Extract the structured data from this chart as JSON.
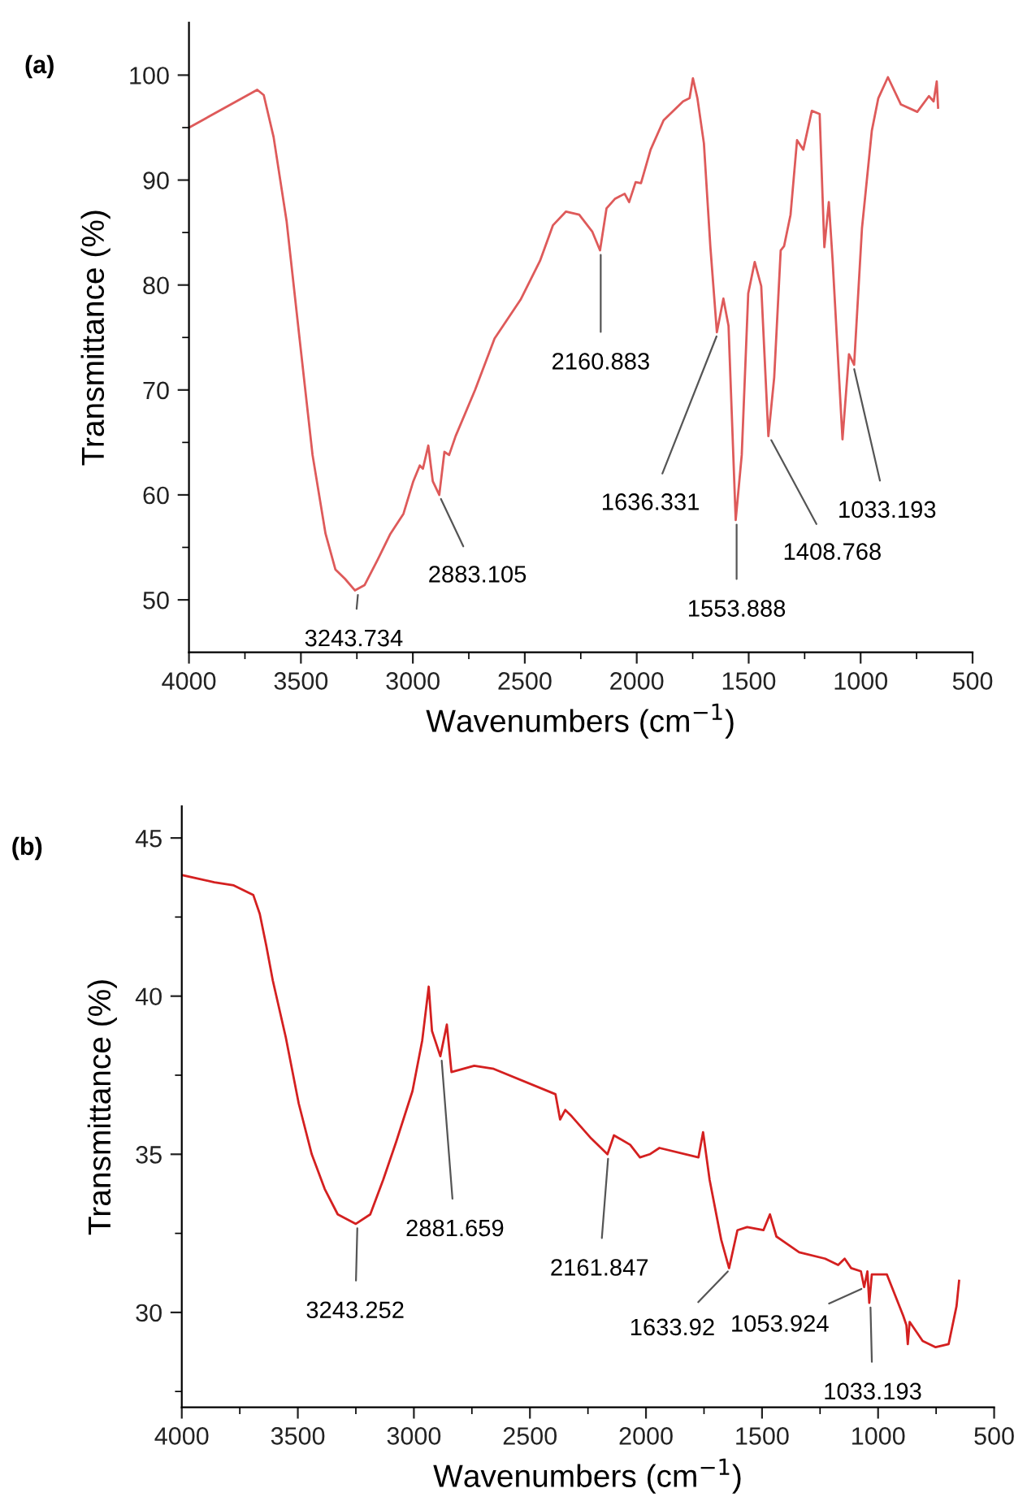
{
  "chart_data": [
    {
      "type": "line",
      "title": "(a)",
      "xlabel": "Wavenumbers (cm$^{−1}$)",
      "ylabel": "Transmittance (%)",
      "xlim": [
        4000,
        500
      ],
      "ylim": [
        45,
        105
      ],
      "xticks": [
        4000,
        {
          "value": 3750,
          "label": null
        },
        3500,
        {
          "value": 3250,
          "label": null
        },
        3000,
        {
          "value": 2750,
          "label": null
        },
        2500,
        {
          "value": 2250,
          "label": null
        },
        2000,
        {
          "value": 1750,
          "label": null
        },
        1500,
        {
          "value": 1250,
          "label": null
        },
        1000,
        {
          "value": 750,
          "label": null
        },
        500
      ],
      "yticks": [
        50,
        {
          "value": 55,
          "label": null
        },
        60,
        {
          "value": 65,
          "label": null
        },
        70,
        {
          "value": 75,
          "label": null
        },
        80,
        {
          "value": 85,
          "label": null
        },
        90,
        {
          "value": 95,
          "label": null
        },
        100
      ],
      "grid": false,
      "legend": false,
      "series": [
        {
          "color": "#de5a5a",
          "x": [
            4000,
            3695,
            3666,
            3622,
            3564,
            3506,
            3448,
            3390,
            3346,
            3303,
            3259,
            3216,
            3158,
            3100,
            3042,
            2998,
            2969,
            2955,
            2931,
            2911,
            2882,
            2859,
            2838,
            2809,
            2722,
            2635,
            2519,
            2432,
            2374,
            2316,
            2257,
            2199,
            2164,
            2135,
            2098,
            2054,
            2034,
            2005,
            1981,
            1938,
            1880,
            1793,
            1764,
            1749,
            1729,
            1700,
            1671,
            1642,
            1613,
            1590,
            1558,
            1531,
            1502,
            1473,
            1444,
            1412,
            1386,
            1357,
            1342,
            1313,
            1284,
            1256,
            1218,
            1183,
            1162,
            1142,
            1125,
            1081,
            1052,
            1029,
            994,
            950,
            921,
            878,
            820,
            747,
            695,
            674,
            660,
            654
          ],
          "values": [
            95.0,
            98.6,
            98.1,
            94.1,
            86.1,
            74.9,
            63.8,
            56.3,
            52.9,
            52.0,
            50.9,
            51.4,
            53.8,
            56.3,
            58.2,
            61.3,
            62.8,
            62.5,
            64.7,
            61.3,
            60.0,
            64.1,
            63.8,
            65.6,
            70.0,
            74.9,
            78.6,
            82.3,
            85.7,
            87.0,
            86.7,
            85.1,
            83.3,
            87.3,
            88.2,
            88.7,
            87.9,
            89.8,
            89.7,
            92.9,
            95.7,
            97.5,
            97.8,
            99.7,
            97.8,
            93.5,
            83.6,
            75.5,
            78.7,
            76.1,
            57.6,
            63.8,
            79.2,
            82.2,
            79.9,
            65.6,
            71.2,
            83.3,
            83.7,
            86.7,
            93.8,
            92.9,
            96.6,
            96.3,
            83.6,
            87.9,
            82.3,
            65.3,
            73.4,
            72.4,
            85.4,
            94.7,
            97.8,
            99.8,
            97.2,
            96.5,
            98.0,
            97.5,
            99.4,
            96.9
          ]
        }
      ],
      "annotations": [
        {
          "text": "3243.734",
          "x": 3243.734,
          "y": 50.9
        },
        {
          "text": "2883.105",
          "x": 2883.105,
          "y": 60.0
        },
        {
          "text": "2160.883",
          "x": 2160.883,
          "y": 83.3
        },
        {
          "text": "1636.331",
          "x": 1636.331,
          "y": 75.5
        },
        {
          "text": "1553.888",
          "x": 1553.888,
          "y": 57.6
        },
        {
          "text": "1408.768",
          "x": 1408.768,
          "y": 65.6
        },
        {
          "text": "1033.193",
          "x": 1033.193,
          "y": 72.4
        }
      ]
    },
    {
      "type": "line",
      "title": "(b)",
      "xlabel": "Wavenumbers (cm$^{−1}$)",
      "ylabel": "Transmittance (%)",
      "xlim": [
        4000,
        500
      ],
      "ylim": [
        27,
        46
      ],
      "xticks": [
        4000,
        {
          "value": 3750,
          "label": null
        },
        3500,
        {
          "value": 3250,
          "label": null
        },
        3000,
        {
          "value": 2750,
          "label": null
        },
        2500,
        {
          "value": 2250,
          "label": null
        },
        2000,
        {
          "value": 1750,
          "label": null
        },
        1500,
        {
          "value": 1250,
          "label": null
        },
        1000,
        {
          "value": 750,
          "label": null
        },
        500
      ],
      "yticks": [
        {
          "value": 27.5,
          "label": null
        },
        30,
        {
          "value": 32.5,
          "label": null
        },
        35,
        {
          "value": 37.5,
          "label": null
        },
        40,
        {
          "value": 42.5,
          "label": null
        },
        45
      ],
      "grid": false,
      "legend": false,
      "series": [
        {
          "color": "#d42020",
          "x": [
            4000,
            3860,
            3776,
            3692,
            3664,
            3636,
            3608,
            3552,
            3496,
            3440,
            3384,
            3328,
            3250,
            3188,
            3132,
            3076,
            3006,
            2964,
            2936,
            2922,
            2886,
            2858,
            2838,
            2740,
            2656,
            2390,
            2370,
            2348,
            2320,
            2236,
            2166,
            2138,
            2068,
            2026,
            1984,
            1942,
            1774,
            1754,
            1726,
            1676,
            1642,
            1606,
            1564,
            1494,
            1466,
            1438,
            1340,
            1228,
            1172,
            1144,
            1116,
            1074,
            1060,
            1046,
            1038,
            1027,
            962,
            892,
            878,
            872,
            864,
            808,
            752,
            696,
            662,
            651
          ],
          "values": [
            43.83,
            43.6,
            43.5,
            43.2,
            42.6,
            41.6,
            40.5,
            38.7,
            36.6,
            35.0,
            33.9,
            33.1,
            32.8,
            33.1,
            34.2,
            35.4,
            37.0,
            38.6,
            40.3,
            38.9,
            38.1,
            39.1,
            37.6,
            37.8,
            37.7,
            36.9,
            36.1,
            36.4,
            36.2,
            35.5,
            35.0,
            35.6,
            35.3,
            34.9,
            35.0,
            35.2,
            34.9,
            35.7,
            34.2,
            32.3,
            31.4,
            32.6,
            32.7,
            32.6,
            33.1,
            32.4,
            31.9,
            31.7,
            31.5,
            31.7,
            31.4,
            31.3,
            30.8,
            31.3,
            30.3,
            31.2,
            31.2,
            29.9,
            29.6,
            29.0,
            29.7,
            29.1,
            28.9,
            29.0,
            30.2,
            31.0
          ]
        }
      ],
      "annotations": [
        {
          "text": "3243.252",
          "x": 3243.252,
          "y": 32.8
        },
        {
          "text": "2881.659",
          "x": 2881.659,
          "y": 38.1
        },
        {
          "text": "2161.847",
          "x": 2161.847,
          "y": 35.0
        },
        {
          "text": "1633.92",
          "x": 1633.92,
          "y": 31.4
        },
        {
          "text": "1053.924",
          "x": 1053.924,
          "y": 30.8
        },
        {
          "text": "1033.193",
          "x": 1033.193,
          "y": 30.3
        }
      ]
    }
  ]
}
